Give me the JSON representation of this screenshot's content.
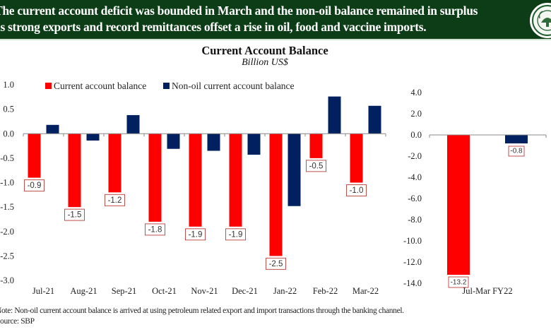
{
  "banner": {
    "line1": "The current account deficit was bounded in March and the non-oil balance remained in surplus",
    "line2": "as strong exports and record remittances offset a rise in oil, food and vaccine imports.",
    "logo_icon": "sbp-seal-icon"
  },
  "colors": {
    "current_account": "#ff0000",
    "non_oil": "#002060",
    "banner_bg": "#0c3d17"
  },
  "chart_data": [
    {
      "type": "bar",
      "title": "Current Account Balance",
      "subtitle": "Billion US$",
      "categories": [
        "Jul-21",
        "Aug-21",
        "Sep-21",
        "Oct-21",
        "Nov-21",
        "Dec-21",
        "Jan-22",
        "Feb-22",
        "Mar-22"
      ],
      "series": [
        {
          "name": "Current account balance",
          "values": [
            -0.9,
            -1.5,
            -1.2,
            -1.8,
            -1.9,
            -1.9,
            -2.5,
            -0.5,
            -1.0
          ],
          "labels": [
            "-0.9",
            "-1.5",
            "-1.2",
            "-1.8",
            "-1.9",
            "-1.9",
            "-2.5",
            "-0.5",
            "-1.0"
          ]
        },
        {
          "name": "Non-oil current account balance",
          "values": [
            0.18,
            -0.14,
            0.38,
            -0.31,
            -0.35,
            -0.43,
            -1.48,
            0.76,
            0.57
          ]
        }
      ],
      "ylim": [
        -3.0,
        1.0
      ],
      "yticks": [
        "1.0",
        "0.5",
        "0.0",
        "-0.5",
        "-1.0",
        "-1.5",
        "-2.0",
        "-2.5",
        "-3.0"
      ],
      "ytick_values": [
        1.0,
        0.5,
        0.0,
        -0.5,
        -1.0,
        -1.5,
        -2.0,
        -2.5,
        -3.0
      ],
      "legend_position": "top",
      "grid": false
    },
    {
      "type": "bar",
      "categories": [
        "Jul-Mar FY22"
      ],
      "series": [
        {
          "name": "Current account balance",
          "values": [
            -13.2
          ],
          "labels": [
            "-13.2"
          ]
        },
        {
          "name": "Non-oil current account balance",
          "values": [
            -0.8
          ],
          "labels": [
            "-0.8"
          ]
        }
      ],
      "ylim": [
        -14.0,
        4.0
      ],
      "yticks": [
        "4.0",
        "2.0",
        "0.0",
        "-2.0",
        "-4.0",
        "-6.0",
        "-8.0",
        "-10.0",
        "-12.0",
        "-14.0"
      ],
      "ytick_values": [
        4.0,
        2.0,
        0.0,
        -2.0,
        -4.0,
        -6.0,
        -8.0,
        -10.0,
        -12.0,
        -14.0
      ],
      "grid": false
    }
  ],
  "footer": {
    "note": "Note: Non-oil current account balance is arrived at using petroleum related export and import transactions through the banking channel.",
    "source": "Source: SBP"
  }
}
